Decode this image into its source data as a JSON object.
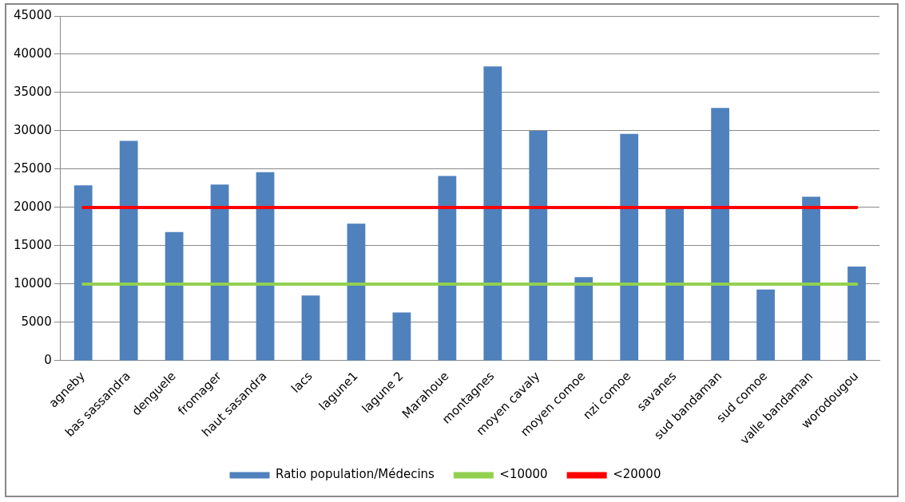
{
  "chart_data": {
    "type": "bar",
    "categories": [
      "agneby",
      "bas sassandra",
      "denguele",
      "fromager",
      "haut sasandra",
      "lacs",
      "lagune1",
      "lagune 2",
      "Marahoue",
      "montagnes",
      "moyen cavaly",
      "moyen comoe",
      "nzi comoe",
      "savanes",
      "sud bandaman",
      "sud comoe",
      "valle bandaman",
      "worodougou"
    ],
    "series": [
      {
        "name": "Ratio population/Médecins",
        "color": "#4f81bd",
        "values": [
          22900,
          28700,
          16800,
          23000,
          24600,
          8500,
          17900,
          6300,
          24100,
          38400,
          30000,
          10900,
          29600,
          19800,
          33000,
          9300,
          21400,
          12300
        ]
      },
      {
        "name": "<10000",
        "type": "line",
        "color": "#92d050",
        "values": [
          10000,
          10000,
          10000,
          10000,
          10000,
          10000,
          10000,
          10000,
          10000,
          10000,
          10000,
          10000,
          10000,
          10000,
          10000,
          10000,
          10000,
          10000
        ]
      },
      {
        "name": "<20000",
        "type": "line",
        "color": "#ff0000",
        "values": [
          20000,
          20000,
          20000,
          20000,
          20000,
          20000,
          20000,
          20000,
          20000,
          20000,
          20000,
          20000,
          20000,
          20000,
          20000,
          20000,
          20000,
          20000
        ]
      }
    ],
    "ylim": [
      0,
      45000
    ],
    "yticks": [
      0,
      5000,
      10000,
      15000,
      20000,
      25000,
      30000,
      35000,
      40000,
      45000
    ],
    "grid": "y",
    "legend": "bottom",
    "marker": "none"
  }
}
